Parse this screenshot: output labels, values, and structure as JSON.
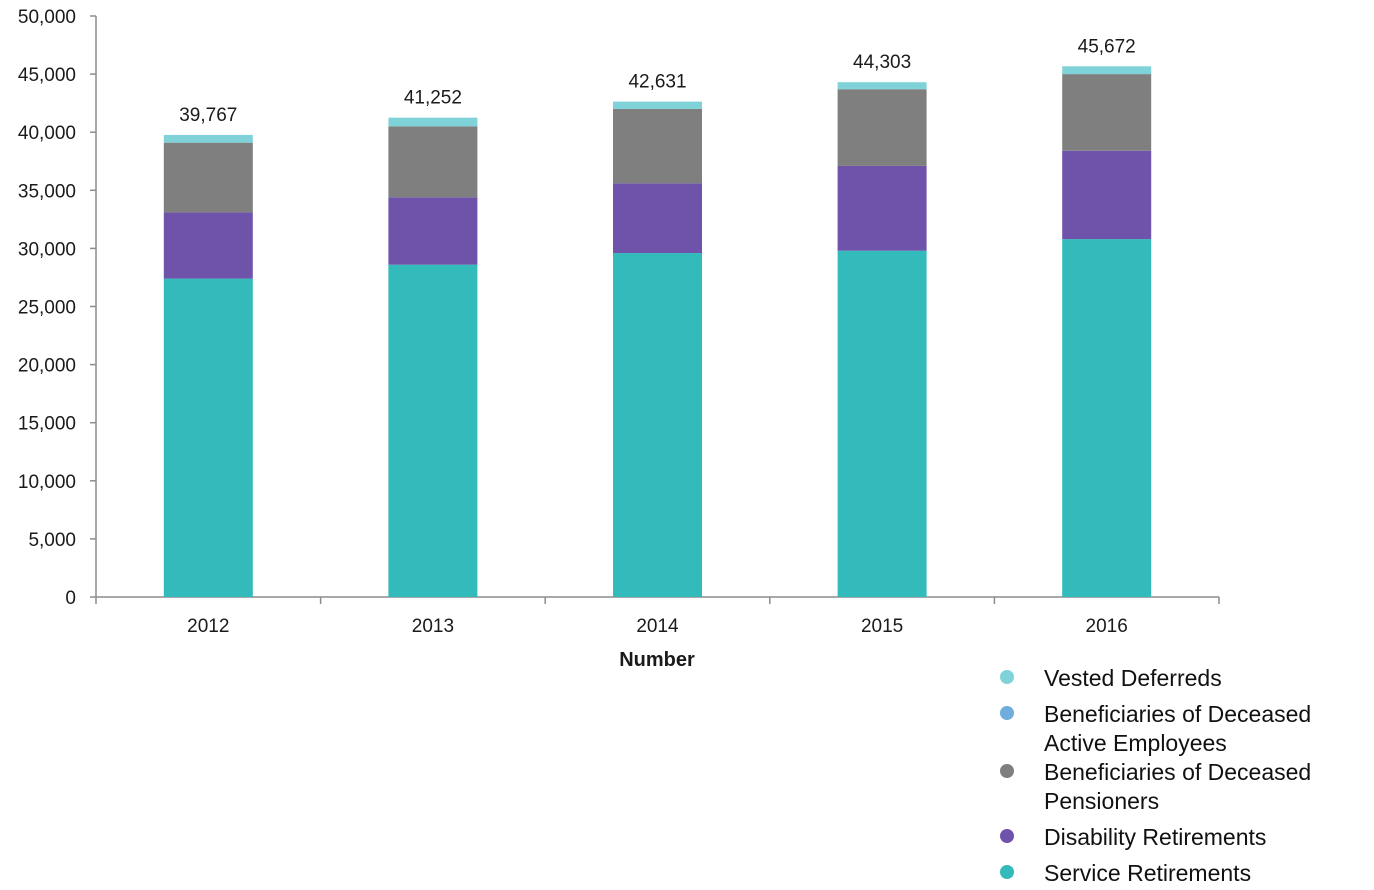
{
  "chart_data": {
    "type": "bar",
    "stacked": true,
    "title": "",
    "xlabel": "Number",
    "ylabel": "",
    "ylim": [
      0,
      50000
    ],
    "y_tick_step": 5000,
    "y_tick_labels": [
      "0",
      "5,000",
      "10,000",
      "15,000",
      "20,000",
      "25,000",
      "30,000",
      "35,000",
      "40,000",
      "45,000",
      "50,000"
    ],
    "grid": false,
    "legend_position": "bottom-right",
    "categories": [
      "2012",
      "2013",
      "2014",
      "2015",
      "2016"
    ],
    "totals": [
      39767,
      41252,
      42631,
      44303,
      45672
    ],
    "total_labels": [
      "39,767",
      "41,252",
      "42,631",
      "44,303",
      "45,672"
    ],
    "series": [
      {
        "name": "Service Retirements",
        "color": "#33BBBB",
        "values": [
          27400,
          28600,
          29600,
          29800,
          30800
        ]
      },
      {
        "name": "Disability Retirements",
        "color": "#6F53AA",
        "values": [
          5700,
          5800,
          6000,
          7300,
          7600
        ]
      },
      {
        "name": "Beneficiaries of Deceased Pensioners",
        "color": "#7F7F7F",
        "values": [
          6000,
          6100,
          6400,
          6600,
          6600
        ]
      },
      {
        "name": "Beneficiaries of Deceased Active Employees",
        "color": "#6FAEDB",
        "values": [
          0,
          0,
          0,
          0,
          0
        ]
      },
      {
        "name": "Vested Deferreds",
        "color": "#7FD3D8",
        "values": [
          667,
          752,
          631,
          603,
          672
        ]
      }
    ],
    "legend": [
      {
        "lines": [
          "Vested Deferreds"
        ],
        "color": "#7FD3D8"
      },
      {
        "lines": [
          "Beneficiaries of Deceased",
          "Active Employees"
        ],
        "color": "#6FAEDB"
      },
      {
        "lines": [
          "Beneficiaries of Deceased",
          "Pensioners"
        ],
        "color": "#7F7F7F"
      },
      {
        "lines": [
          "Disability Retirements"
        ],
        "color": "#6F53AA"
      },
      {
        "lines": [
          "Service Retirements"
        ],
        "color": "#33BBBB"
      }
    ]
  }
}
